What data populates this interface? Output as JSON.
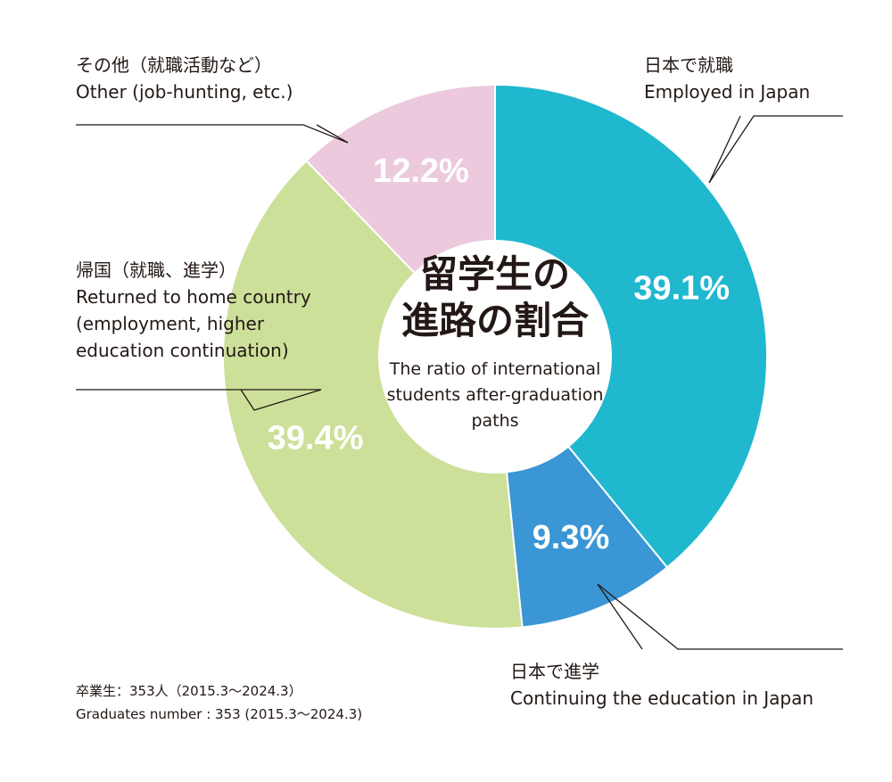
{
  "chart_data": {
    "type": "donut",
    "title": [
      "留学生の",
      "進路の割合"
    ],
    "subtitle": "The ratio of international students after-graduation paths",
    "categories_ja": [
      "日本で就職",
      "日本で進学",
      "帰国（就職、進学）",
      "その他（就職活動など）"
    ],
    "categories": [
      "Employed in Japan",
      "Continuing the education in Japan",
      "Returned to home country (employment, higher education continuation)",
      "Other (job-hunting, etc.)"
    ],
    "values": [
      39.1,
      9.3,
      39.4,
      12.2
    ],
    "value_labels": [
      "39.1%",
      "9.3%",
      "39.4%",
      "12.2%"
    ],
    "colors": [
      "#1fb8cf",
      "#3a96d4",
      "#cde09a",
      "#ecc9dd"
    ],
    "note_ja": "卒業生：353人（2015.3〜2024.3）",
    "note_en": "Graduates number : 353 (2015.3〜2024.3)"
  }
}
